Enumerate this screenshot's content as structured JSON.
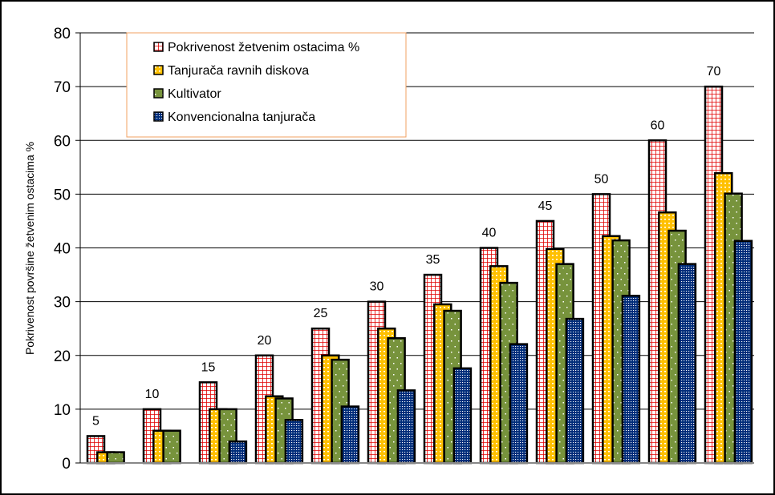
{
  "chart_data": {
    "type": "bar",
    "title": "",
    "xlabel": "",
    "ylabel": "Pokrivenost površine žetvenim ostacima %",
    "ylim": [
      0,
      80
    ],
    "yticks": [
      0,
      10,
      20,
      30,
      40,
      50,
      60,
      70,
      80
    ],
    "grid": true,
    "legend_position": "top-left",
    "categories": [
      "5",
      "10",
      "15",
      "20",
      "25",
      "30",
      "35",
      "40",
      "45",
      "50",
      "60",
      "70"
    ],
    "series": [
      {
        "name": "Pokrivenost žetvenim ostacima %",
        "color": "#E00000",
        "pattern": "grid",
        "values": [
          5,
          10,
          15,
          20,
          25,
          30,
          35,
          40,
          45,
          50,
          60,
          70
        ],
        "show_labels": true
      },
      {
        "name": "Tanjurača ravnih diskova",
        "color": "#FFC000",
        "pattern": "dots",
        "values": [
          2,
          6,
          10,
          12.4,
          20,
          25,
          29.5,
          36.6,
          39.8,
          42.2,
          46.6,
          53.9
        ]
      },
      {
        "name": "Kultivator",
        "color": "#77933C",
        "pattern": "sparse-dots",
        "values": [
          2,
          6,
          10,
          12,
          19.2,
          23.2,
          28.3,
          33.5,
          37,
          41.4,
          43.2,
          50.1
        ]
      },
      {
        "name": "Konvencionalna tanjurača",
        "color": "#002D7A",
        "pattern": "fine-dots",
        "values": [
          0,
          0,
          4,
          8,
          10.5,
          13.5,
          17.6,
          22.1,
          26.8,
          31.1,
          37,
          41.3
        ]
      }
    ]
  }
}
